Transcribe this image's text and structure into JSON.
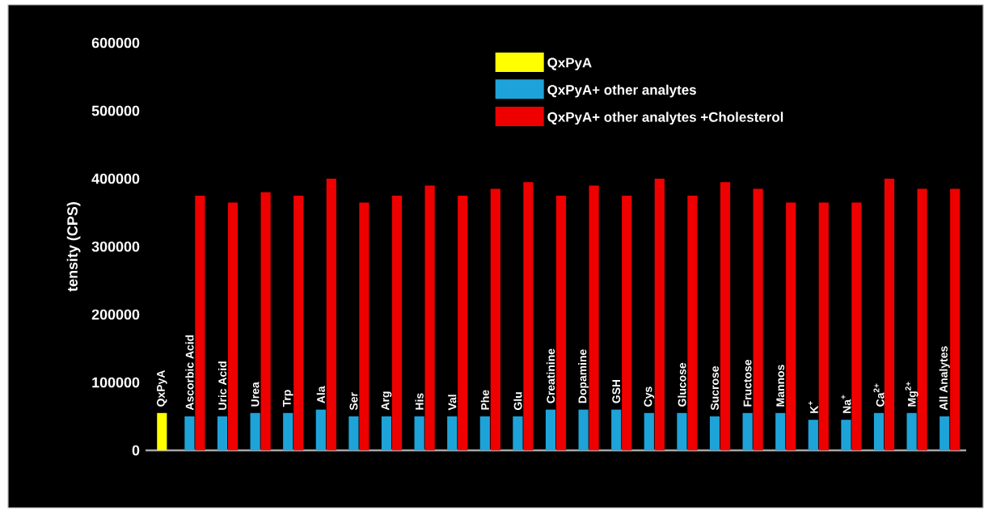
{
  "chart_data": {
    "type": "bar",
    "ylabel": "tensity (CPS)",
    "categories": [
      "QxPyA",
      "Ascorbic Acid",
      "Uric Acid",
      "Urea",
      "Trp",
      "Ala",
      "Ser",
      "Arg",
      "His",
      "Val",
      "Phe",
      "Glu",
      "Creatinine",
      "Dopamine",
      "GSH",
      "Cys",
      "Glucose",
      "Sucrose",
      "Fructose",
      "Mannos",
      "K$^{+}$",
      "Na$^{+}$",
      "Ca$^{2+}$",
      "Mg$^{2+}$",
      "All Analytes"
    ],
    "series": [
      {
        "name": "QxPyA",
        "color": "#ffff00",
        "values": [
          55000,
          null,
          null,
          null,
          null,
          null,
          null,
          null,
          null,
          null,
          null,
          null,
          null,
          null,
          null,
          null,
          null,
          null,
          null,
          null,
          null,
          null,
          null,
          null,
          null
        ]
      },
      {
        "name": "QxPyA+ other analytes",
        "color": "#1ea3d8",
        "values": [
          null,
          50000,
          50000,
          55000,
          55000,
          60000,
          50000,
          50000,
          50000,
          50000,
          50000,
          50000,
          60000,
          60000,
          60000,
          55000,
          55000,
          50000,
          55000,
          55000,
          45000,
          45000,
          55000,
          55000,
          50000
        ]
      },
      {
        "name": "QxPyA+ other analytes +Cholesterol",
        "color": "#ee0000",
        "values": [
          null,
          375000,
          365000,
          380000,
          375000,
          400000,
          365000,
          375000,
          390000,
          375000,
          385000,
          395000,
          375000,
          390000,
          375000,
          400000,
          375000,
          395000,
          385000,
          365000,
          365000,
          365000,
          400000,
          385000,
          385000
        ]
      }
    ],
    "ylim": [
      0,
      600000
    ],
    "yticks": [
      0,
      100000,
      200000,
      300000,
      400000,
      500000,
      600000
    ],
    "legend": "top"
  }
}
